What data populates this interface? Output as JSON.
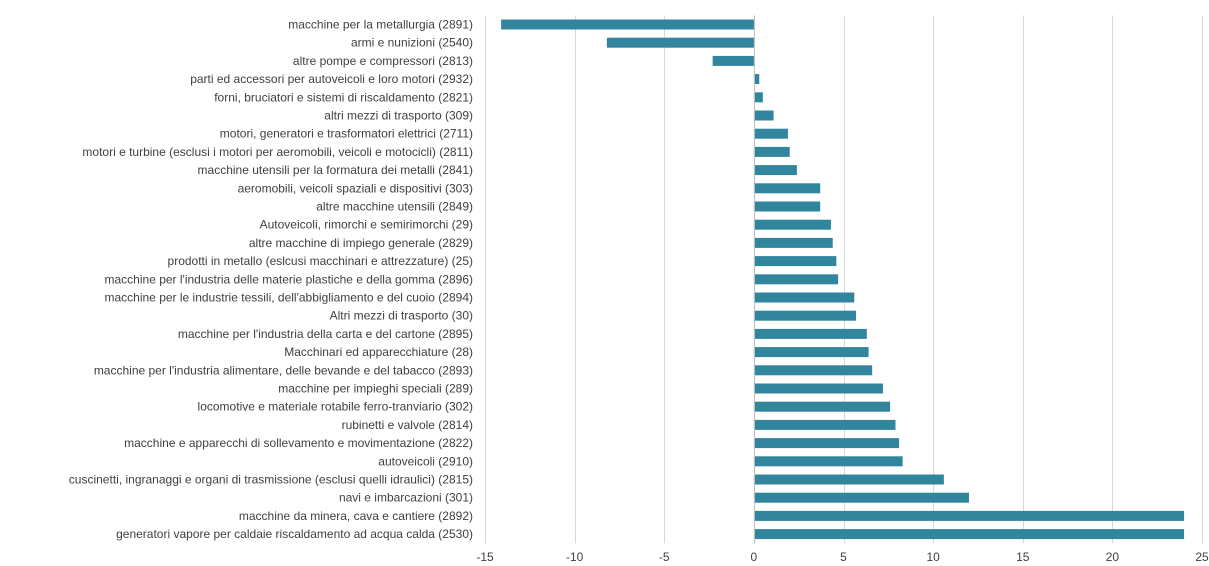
{
  "chart_data": {
    "type": "bar",
    "orientation": "horizontal",
    "title": "",
    "xlabel": "",
    "ylabel": "",
    "xlim": [
      -15,
      25
    ],
    "xticks": [
      -15,
      -10,
      -5,
      0,
      5,
      10,
      15,
      20,
      25
    ],
    "xtick_labels": [
      "-15",
      "-10",
      "-5",
      "0",
      "5",
      "10",
      "15",
      "20",
      "25"
    ],
    "grid": true,
    "legend": "none",
    "bar_color": "#31859c",
    "categories": [
      "macchine per la metallurgia (2891)",
      "armi e nunizioni (2540)",
      "altre pompe e compressori (2813)",
      "parti ed accessori per autoveicoli e loro motori (2932)",
      "forni, bruciatori e sistemi di riscaldamento (2821)",
      "altri mezzi di trasporto (309)",
      "motori, generatori e trasformatori elettrici (2711)",
      "motori e turbine (esclusi i motori per aeromobili, veicoli e motocicli) (2811)",
      "macchine utensili per la formatura dei metalli (2841)",
      "aeromobili, veicoli spaziali e dispositivi (303)",
      "altre macchine utensili (2849)",
      "Autoveicoli, rimorchi e semirimorchi (29)",
      "altre macchine di impiego generale (2829)",
      "prodotti in metallo (eslcusi macchinari e attrezzature) (25)",
      "macchine per l'industria delle materie plastiche e della gomma (2896)",
      "macchine per le industrie tessili, dell'abbigliamento e del cuoio (2894)",
      "Altri mezzi di trasporto (30)",
      "macchine per l'industria della carta e del cartone (2895)",
      "Macchinari ed apparecchiature (28)",
      "macchine per l'industria alimentare, delle bevande e del tabacco (2893)",
      "macchine per impieghi speciali (289)",
      "locomotive e materiale rotabile ferro-tranviario (302)",
      "rubinetti e valvole (2814)",
      "macchine e apparecchi di sollevamento e movimentazione (2822)",
      "autoveicoli (2910)",
      "cuscinetti, ingranaggi e organi di trasmissione (esclusi quelli idraulici) (2815)",
      "navi e imbarcazioni (301)",
      "macchine da minera, cava e cantiere (2892)",
      "generatori vapore per caldaie riscaldamento ad acqua calda (2530)"
    ],
    "values": [
      -14.1,
      -8.2,
      -2.3,
      0.3,
      0.5,
      1.1,
      1.9,
      2.0,
      2.4,
      3.7,
      3.7,
      4.3,
      4.4,
      4.6,
      4.7,
      5.6,
      5.7,
      6.3,
      6.4,
      6.6,
      7.2,
      7.6,
      7.9,
      8.1,
      8.3,
      10.6,
      12.0,
      24.0,
      24.0
    ]
  }
}
